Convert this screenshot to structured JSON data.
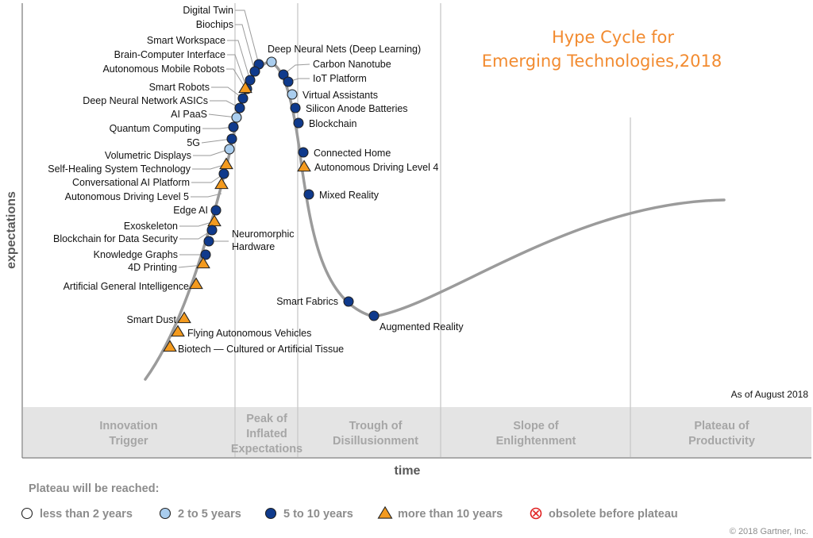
{
  "chart_data": {
    "type": "scatter",
    "title_lines": [
      "Hype Cycle for",
      "Emerging Technologies,2018"
    ],
    "xlabel": "time",
    "ylabel": "expectations",
    "date_note": "As of August 2018",
    "copyright": "© 2018 Gartner, Inc.",
    "phases": [
      {
        "lines": [
          "Innovation",
          "Trigger"
        ]
      },
      {
        "lines": [
          "Peak of",
          "Inflated",
          "Expectations"
        ]
      },
      {
        "lines": [
          "Trough of",
          "Disillusionment"
        ]
      },
      {
        "lines": [
          "Slope of",
          "Enlightenment"
        ]
      },
      {
        "lines": [
          "Plateau of",
          "Productivity"
        ]
      }
    ],
    "legend_title": "Plateau will be reached:",
    "legend": [
      {
        "key": "lt2",
        "label": "less than 2 years"
      },
      {
        "key": "y2to5",
        "label": "2 to 5 years"
      },
      {
        "key": "y5to10",
        "label": "5 to 10 years"
      },
      {
        "key": "gt10",
        "label": "more than 10 years"
      },
      {
        "key": "obsolete",
        "label": "obsolete before plateau"
      }
    ],
    "colors": {
      "lt2": "#ffffff",
      "y2to5": "#a9cdee",
      "y5to10": "#0f3a8c",
      "gt10": "#f39a1e",
      "obsolete": "#e02020",
      "curve": "#9b9b9b",
      "title": "#f28b30"
    },
    "technologies": [
      {
        "name": "Digital Twin",
        "cat": "y5to10"
      },
      {
        "name": "Biochips",
        "cat": "y5to10"
      },
      {
        "name": "Smart Workspace",
        "cat": "y5to10"
      },
      {
        "name": "Brain-Computer Interface",
        "cat": "y5to10"
      },
      {
        "name": "Autonomous Mobile Robots",
        "cat": "gt10"
      },
      {
        "name": "Smart Robots",
        "cat": "y5to10"
      },
      {
        "name": "Deep Neural Network ASICs",
        "cat": "y5to10"
      },
      {
        "name": "AI PaaS",
        "cat": "y2to5"
      },
      {
        "name": "Quantum Computing",
        "cat": "y5to10"
      },
      {
        "name": "5G",
        "cat": "y5to10"
      },
      {
        "name": "Volumetric Displays",
        "cat": "y2to5"
      },
      {
        "name": "Self-Healing System Technology",
        "cat": "gt10"
      },
      {
        "name": "Conversational AI Platform",
        "cat": "y5to10"
      },
      {
        "name": "Autonomous Driving Level 5",
        "cat": "gt10"
      },
      {
        "name": "Edge AI",
        "cat": "y5to10"
      },
      {
        "name": "Exoskeleton",
        "cat": "gt10"
      },
      {
        "name": "Blockchain for Data Security",
        "cat": "y5to10"
      },
      {
        "name": "Neuromorphic Hardware",
        "cat": "y5to10"
      },
      {
        "name": "Knowledge Graphs",
        "cat": "y5to10"
      },
      {
        "name": "4D Printing",
        "cat": "gt10"
      },
      {
        "name": "Artificial General Intelligence",
        "cat": "gt10"
      },
      {
        "name": "Smart Dust",
        "cat": "gt10"
      },
      {
        "name": "Flying Autonomous Vehicles",
        "cat": "gt10"
      },
      {
        "name": "Biotech — Cultured or Artificial Tissue",
        "cat": "gt10"
      },
      {
        "name": "Deep Neural Nets (Deep Learning)",
        "cat": "y2to5"
      },
      {
        "name": "Carbon Nanotube",
        "cat": "y5to10"
      },
      {
        "name": "IoT Platform",
        "cat": "y5to10"
      },
      {
        "name": "Virtual Assistants",
        "cat": "y2to5"
      },
      {
        "name": "Silicon Anode Batteries",
        "cat": "y5to10"
      },
      {
        "name": "Blockchain",
        "cat": "y5to10"
      },
      {
        "name": "Connected Home",
        "cat": "y5to10"
      },
      {
        "name": "Autonomous Driving Level 4",
        "cat": "gt10"
      },
      {
        "name": "Mixed Reality",
        "cat": "y5to10"
      },
      {
        "name": "Smart Fabrics",
        "cat": "y5to10"
      },
      {
        "name": "Augmented Reality",
        "cat": "y5to10"
      }
    ]
  }
}
